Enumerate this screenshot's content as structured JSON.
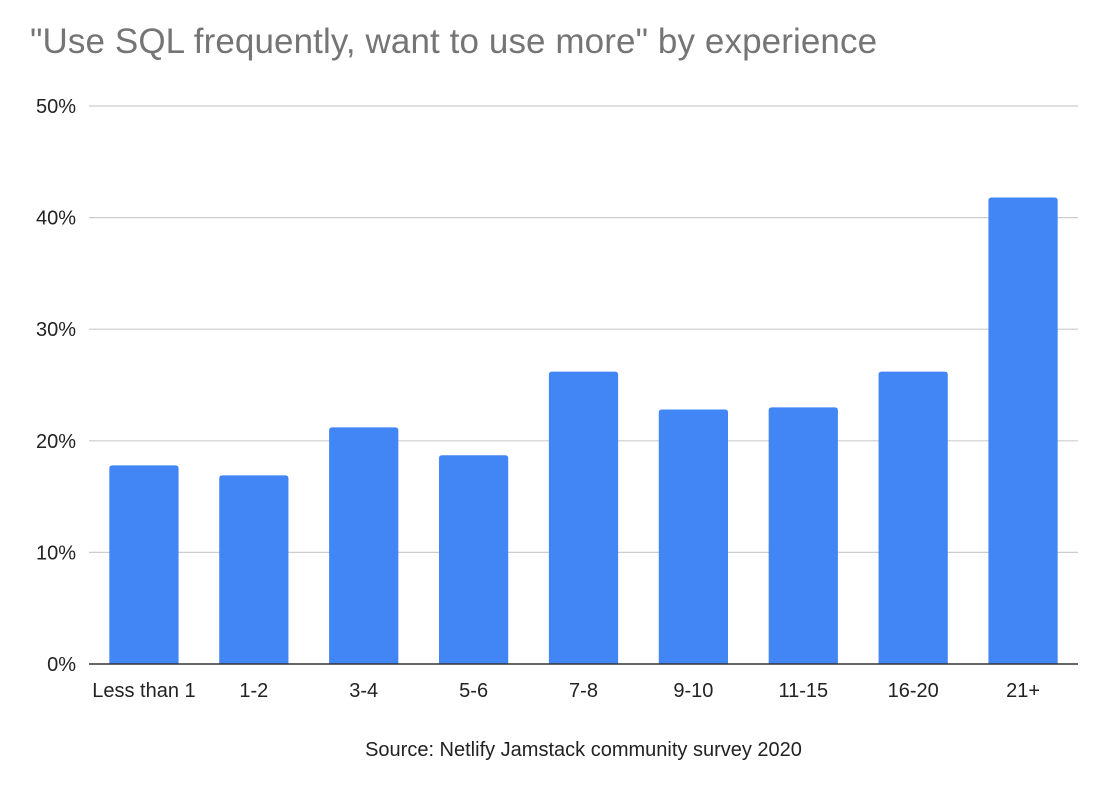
{
  "chart_data": {
    "type": "bar",
    "title": "\"Use SQL frequently, want to use more\" by experience",
    "xlabel": "Source: Netlify Jamstack community survey 2020",
    "ylabel": "",
    "categories": [
      "Less than 1",
      "1-2",
      "3-4",
      "5-6",
      "7-8",
      "9-10",
      "11-15",
      "16-20",
      "21+"
    ],
    "values": [
      17.8,
      16.9,
      21.2,
      18.7,
      26.2,
      22.8,
      23.0,
      26.2,
      41.8
    ],
    "ylim": [
      0,
      50
    ],
    "yticks": [
      0,
      10,
      20,
      30,
      40,
      50
    ],
    "ytick_labels": [
      "0%",
      "10%",
      "20%",
      "30%",
      "40%",
      "50%"
    ],
    "grid": true,
    "legend": "none",
    "colors": {
      "bar": "#4285f4",
      "grid": "#cccccc",
      "axis": "#333333",
      "title": "#757575"
    }
  }
}
